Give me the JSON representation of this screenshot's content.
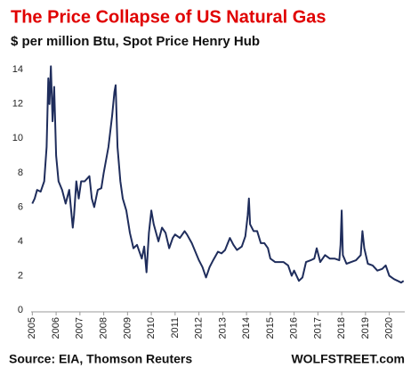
{
  "chart_data": {
    "type": "line",
    "title": "The Price Collapse of US Natural Gas",
    "subtitle": "$ per million Btu, Spot Price Henry Hub",
    "source": "Source: EIA, Thomson Reuters",
    "credit": "WOLFSTREET.com",
    "x": [
      2005.0,
      2005.1,
      2005.2,
      2005.35,
      2005.5,
      2005.6,
      2005.67,
      2005.72,
      2005.78,
      2005.85,
      2005.92,
      2006.0,
      2006.1,
      2006.25,
      2006.4,
      2006.55,
      2006.7,
      2006.75,
      2006.85,
      2006.95,
      2007.05,
      2007.2,
      2007.4,
      2007.5,
      2007.6,
      2007.75,
      2007.9,
      2008.0,
      2008.2,
      2008.35,
      2008.45,
      2008.5,
      2008.58,
      2008.7,
      2008.8,
      2008.95,
      2009.1,
      2009.25,
      2009.4,
      2009.6,
      2009.7,
      2009.8,
      2009.9,
      2010.0,
      2010.1,
      2010.3,
      2010.45,
      2010.6,
      2010.75,
      2010.9,
      2011.0,
      2011.2,
      2011.4,
      2011.5,
      2011.7,
      2011.85,
      2012.0,
      2012.15,
      2012.3,
      2012.45,
      2012.6,
      2012.8,
      2012.95,
      2013.1,
      2013.3,
      2013.45,
      2013.6,
      2013.8,
      2013.95,
      2014.05,
      2014.1,
      2014.15,
      2014.3,
      2014.45,
      2014.6,
      2014.75,
      2014.9,
      2015.0,
      2015.2,
      2015.4,
      2015.55,
      2015.75,
      2015.9,
      2016.0,
      2016.2,
      2016.35,
      2016.5,
      2016.7,
      2016.85,
      2016.95,
      2017.1,
      2017.3,
      2017.5,
      2017.7,
      2017.9,
      2017.95,
      2018.0,
      2018.05,
      2018.2,
      2018.4,
      2018.6,
      2018.8,
      2018.87,
      2018.95,
      2019.1,
      2019.3,
      2019.5,
      2019.7,
      2019.85,
      2020.0,
      2020.2,
      2020.35,
      2020.5,
      2020.6
    ],
    "series": [
      {
        "name": "Spot Price Henry Hub",
        "color": "#1f2d5c",
        "values": [
          6.2,
          6.5,
          7.0,
          6.9,
          7.5,
          9.5,
          13.5,
          12.0,
          14.2,
          11.0,
          13.0,
          9.0,
          7.5,
          7.0,
          6.2,
          7.0,
          4.8,
          5.5,
          7.5,
          6.5,
          7.5,
          7.5,
          7.8,
          6.5,
          6.0,
          7.0,
          7.1,
          8.0,
          9.5,
          11.3,
          12.7,
          13.1,
          9.5,
          7.5,
          6.5,
          5.8,
          4.5,
          3.6,
          3.8,
          3.0,
          3.7,
          2.2,
          4.5,
          5.8,
          5.0,
          4.0,
          4.8,
          4.5,
          3.6,
          4.2,
          4.4,
          4.2,
          4.6,
          4.4,
          3.9,
          3.4,
          2.9,
          2.5,
          1.9,
          2.5,
          2.9,
          3.4,
          3.3,
          3.5,
          4.2,
          3.8,
          3.5,
          3.7,
          4.3,
          5.5,
          6.5,
          5.0,
          4.6,
          4.6,
          3.9,
          3.9,
          3.6,
          3.0,
          2.8,
          2.8,
          2.8,
          2.6,
          2.0,
          2.3,
          1.7,
          1.9,
          2.8,
          2.9,
          3.0,
          3.6,
          2.8,
          3.2,
          3.0,
          3.0,
          2.9,
          3.8,
          5.8,
          3.2,
          2.7,
          2.8,
          2.9,
          3.2,
          4.6,
          3.6,
          2.7,
          2.6,
          2.3,
          2.4,
          2.6,
          2.0,
          1.8,
          1.7,
          1.6,
          1.7
        ]
      }
    ],
    "xlim": [
      2004.95,
      2020.65
    ],
    "xticks": [
      2005,
      2006,
      2007,
      2008,
      2009,
      2010,
      2011,
      2012,
      2013,
      2014,
      2015,
      2016,
      2017,
      2018,
      2019,
      2020
    ],
    "ylim": [
      0,
      15
    ],
    "yticks": [
      0,
      2,
      4,
      6,
      8,
      10,
      12,
      14
    ],
    "grid": false
  }
}
